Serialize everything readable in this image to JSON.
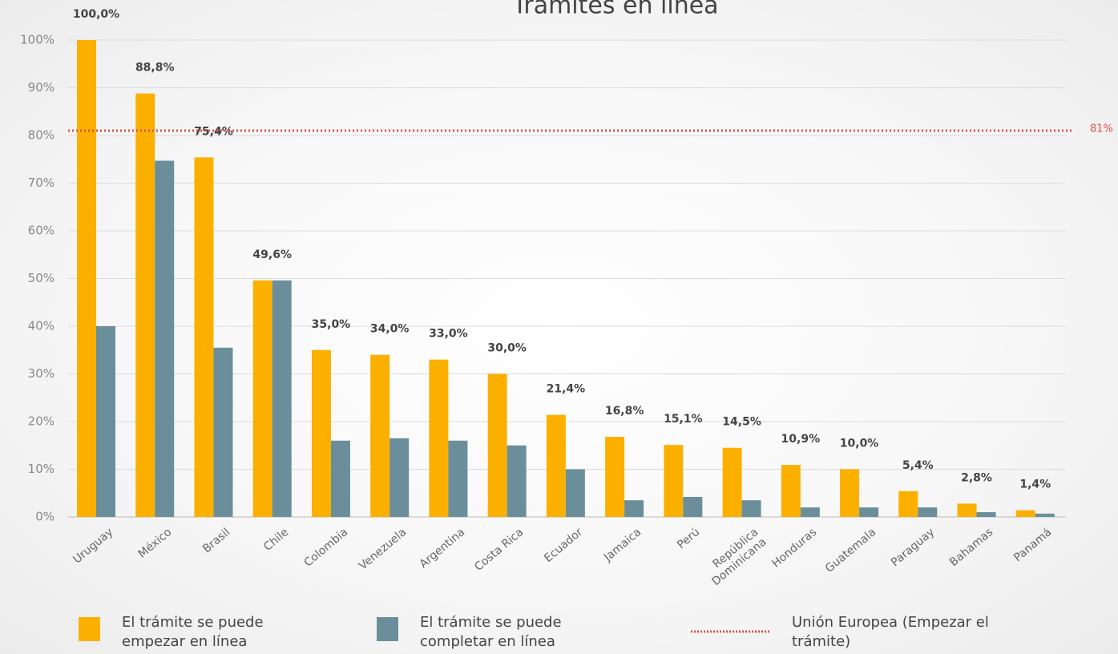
{
  "chart_data": {
    "type": "bar",
    "title": "Trámites en línea",
    "categories": [
      "Uruguay",
      "México",
      "Brasil",
      "Chile",
      "Colombia",
      "Venezuela",
      "Argentina",
      "Costa Rica",
      "Ecuador",
      "Jamaica",
      "Perú",
      "República Dominicana",
      "Honduras",
      "Guatemala",
      "Paraguay",
      "Bahamas",
      "Panamá"
    ],
    "series": [
      {
        "name": "El trámite se puede empezar en línea",
        "color": "#fbb000",
        "values": [
          100,
          88.8,
          75.4,
          49.6,
          35,
          34,
          33,
          30,
          21.4,
          16.8,
          15.1,
          14.5,
          10.9,
          10,
          5.4,
          2.8,
          1.4
        ],
        "value_labels": [
          "100,0%",
          "88,8%",
          "75,4%",
          "49,6%",
          "35,0%",
          "34,0%",
          "33,0%",
          "30,0%",
          "21,4%",
          "16,8%",
          "15,1%",
          "14,5%",
          "10,9%",
          "10,0%",
          "5,4%",
          "2,8%",
          "1,4%"
        ]
      },
      {
        "name": "El trámite se puede completar en línea",
        "color": "#6b8f9a",
        "values": [
          40,
          74.7,
          35.5,
          49.6,
          16,
          16.5,
          16,
          15,
          10,
          3.5,
          4.2,
          3.5,
          2,
          2,
          2,
          1,
          0.7
        ]
      }
    ],
    "reference_line": {
      "name": "Unión Europea (Empezar el trámite)",
      "value": 81,
      "label": "81%",
      "color": "#d9534f"
    },
    "ylim": [
      0,
      100
    ],
    "yticks": [
      {
        "value": 0,
        "label": "0%"
      },
      {
        "value": 10,
        "label": "10%"
      },
      {
        "value": 20,
        "label": "20%"
      },
      {
        "value": 30,
        "label": "30%"
      },
      {
        "value": 40,
        "label": "40%"
      },
      {
        "value": 50,
        "label": "50%"
      },
      {
        "value": 60,
        "label": "60%"
      },
      {
        "value": 70,
        "label": "70%"
      },
      {
        "value": 80,
        "label": "80%"
      },
      {
        "value": 90,
        "label": "90%"
      },
      {
        "value": 100,
        "label": "100%"
      }
    ],
    "grid": true,
    "legend": "bottom"
  }
}
